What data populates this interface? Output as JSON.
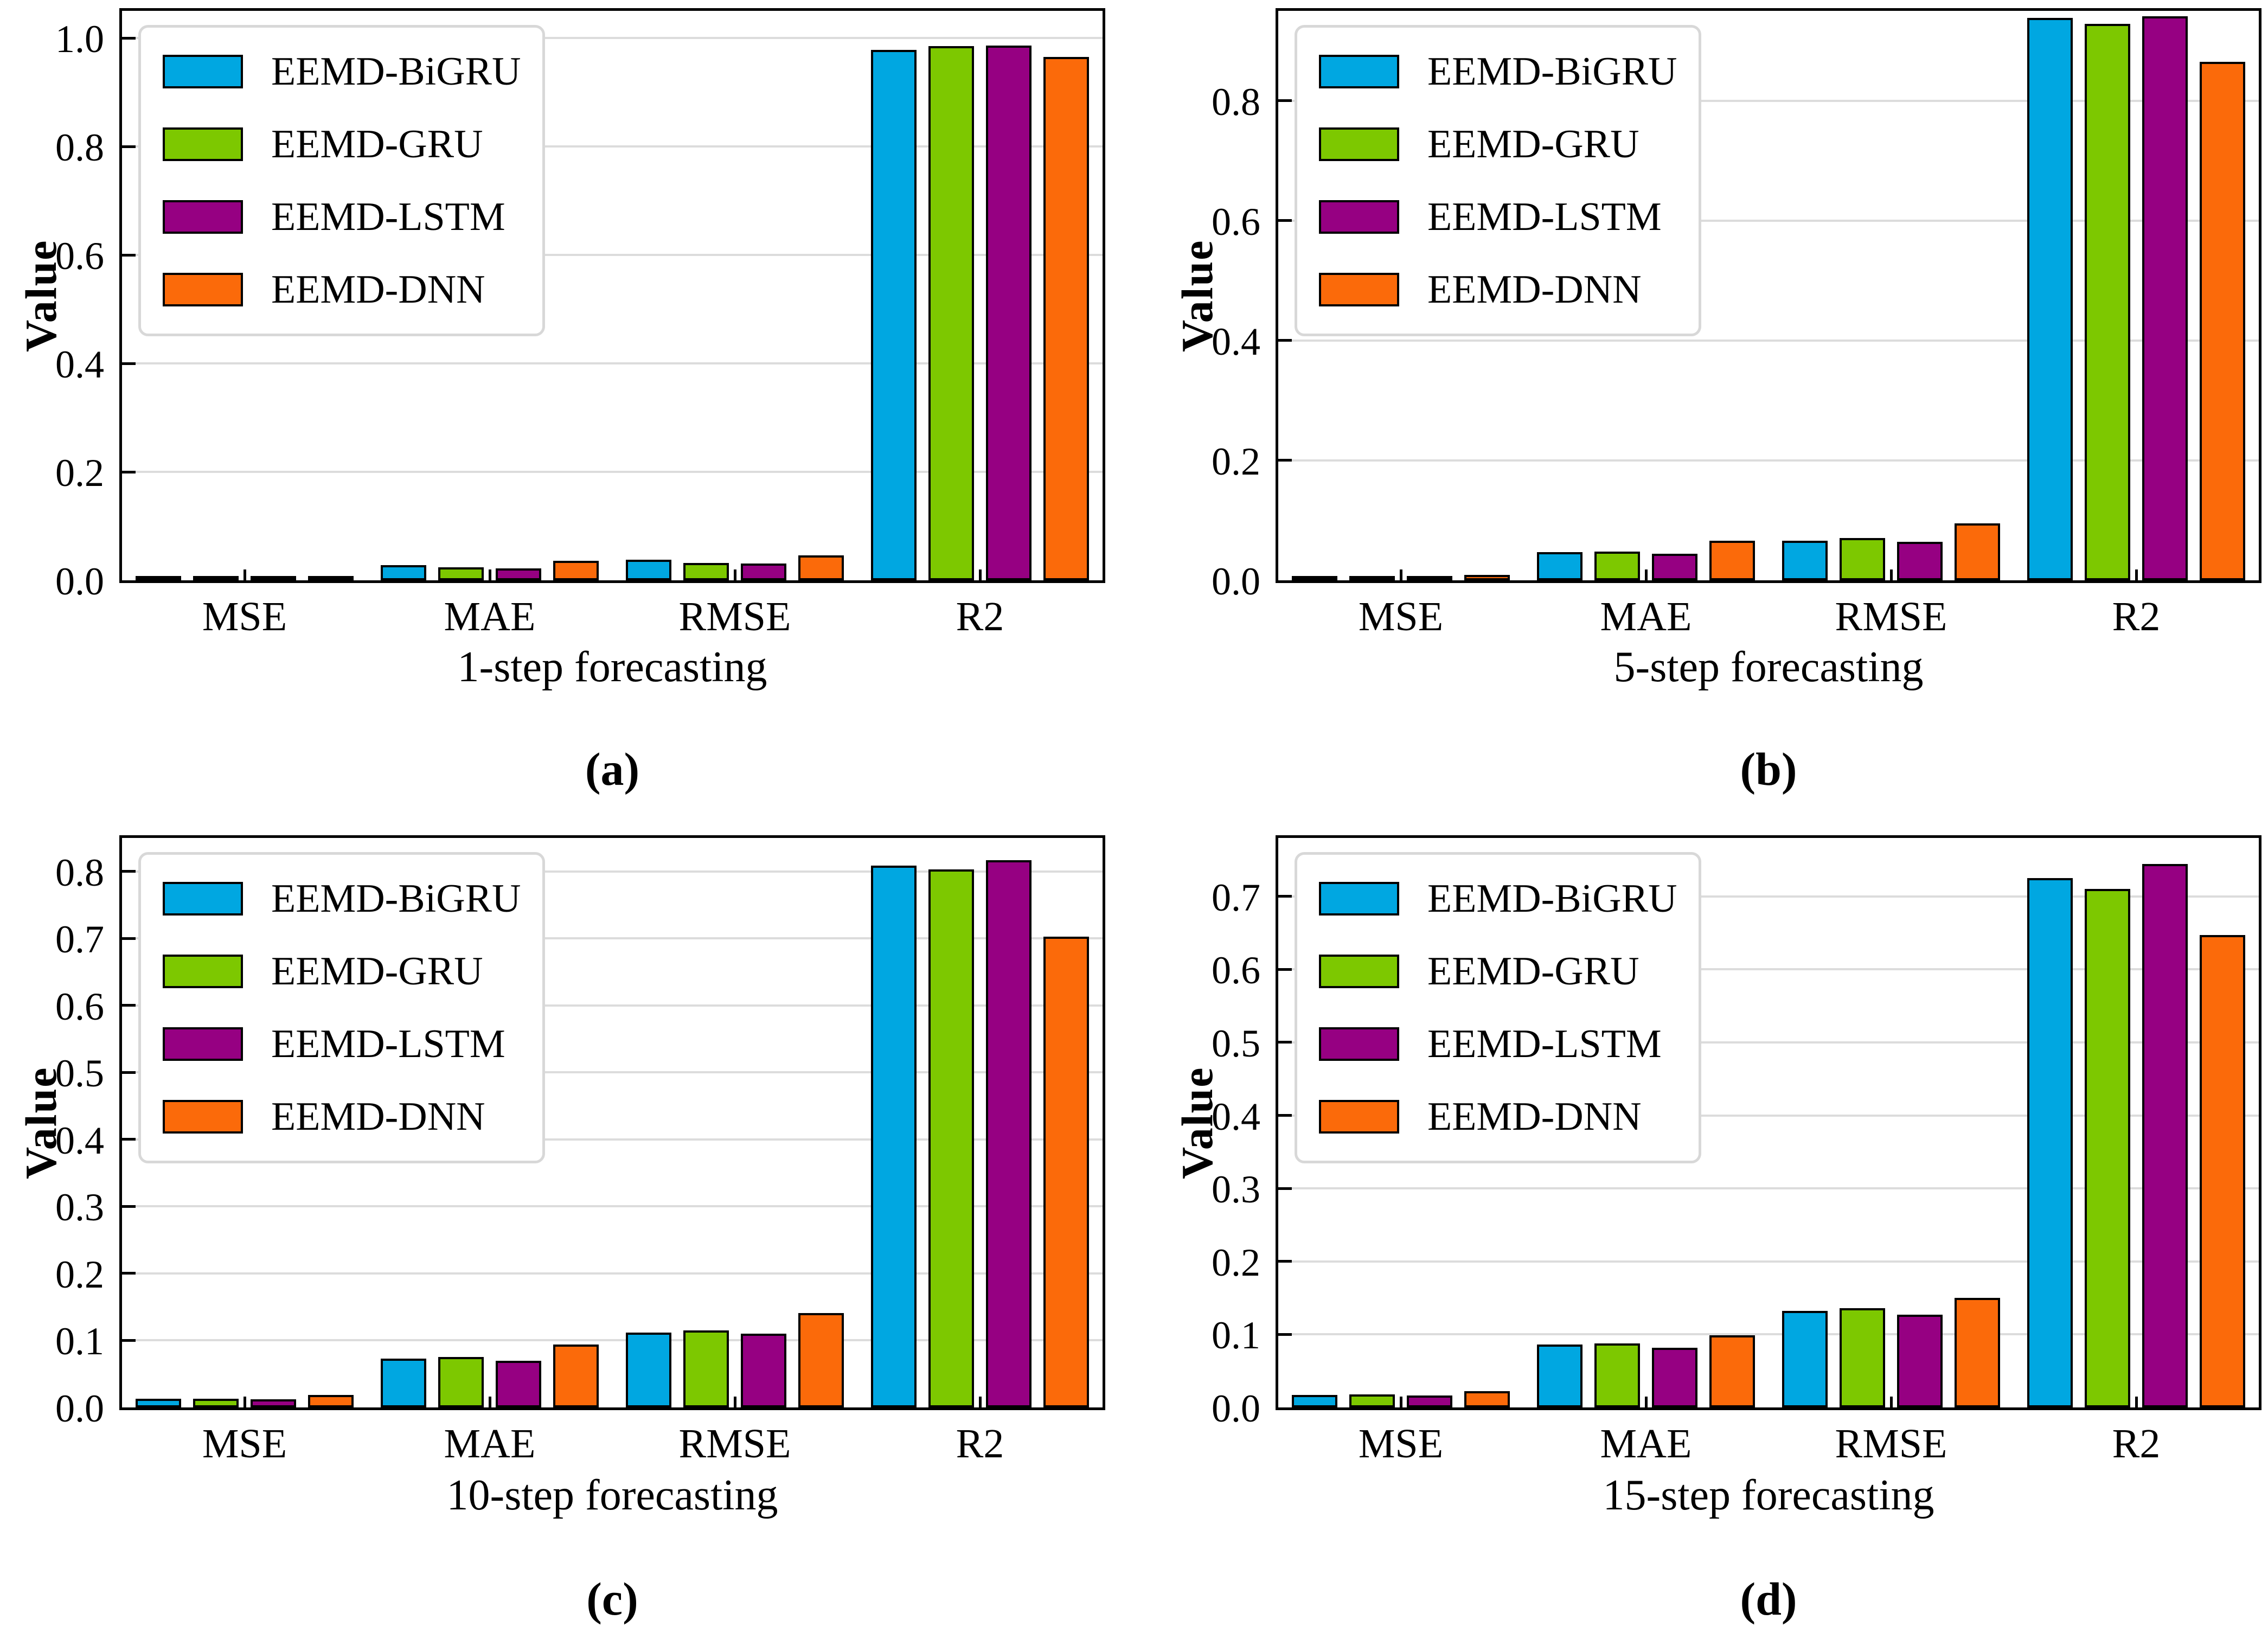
{
  "figure": {
    "background": "#ffffff",
    "gridline_color": "#dcdcdc",
    "bar_edge_color": "#000000",
    "panel_count": 4
  },
  "chart_data": [
    {
      "type": "bar",
      "panel_label": "(a)",
      "xlabel": "1-step forecasting",
      "ylabel": "Value",
      "categories": [
        "MSE",
        "MAE",
        "RMSE",
        "R2"
      ],
      "series": [
        {
          "name": "EEMD-BiGRU",
          "color": "#00a7e1",
          "values": [
            0.0015,
            0.028,
            0.038,
            0.978
          ]
        },
        {
          "name": "EEMD-GRU",
          "color": "#7dc800",
          "values": [
            0.001,
            0.024,
            0.032,
            0.985
          ]
        },
        {
          "name": "EEMD-LSTM",
          "color": "#960082",
          "values": [
            0.001,
            0.022,
            0.031,
            0.986
          ]
        },
        {
          "name": "EEMD-DNN",
          "color": "#fb6a0a",
          "values": [
            0.002,
            0.036,
            0.046,
            0.965
          ]
        }
      ],
      "ylim": [
        0,
        1.05
      ],
      "yticks": [
        "0.0",
        "0.2",
        "0.4",
        "0.6",
        "0.8",
        "1.0"
      ],
      "grid": true,
      "legend_position": "upper left"
    },
    {
      "type": "bar",
      "panel_label": "(b)",
      "xlabel": "5-step forecasting",
      "ylabel": "Value",
      "categories": [
        "MSE",
        "MAE",
        "RMSE",
        "R2"
      ],
      "series": [
        {
          "name": "EEMD-BiGRU",
          "color": "#00a7e1",
          "values": [
            0.005,
            0.047,
            0.066,
            0.938
          ]
        },
        {
          "name": "EEMD-GRU",
          "color": "#7dc800",
          "values": [
            0.005,
            0.048,
            0.071,
            0.928
          ]
        },
        {
          "name": "EEMD-LSTM",
          "color": "#960082",
          "values": [
            0.004,
            0.044,
            0.064,
            0.941
          ]
        },
        {
          "name": "EEMD-DNN",
          "color": "#fb6a0a",
          "values": [
            0.009,
            0.066,
            0.095,
            0.865
          ]
        }
      ],
      "ylim": [
        0,
        0.95
      ],
      "yticks": [
        "0.0",
        "0.2",
        "0.4",
        "0.6",
        "0.8"
      ],
      "grid": true,
      "legend_position": "upper left"
    },
    {
      "type": "bar",
      "panel_label": "(c)",
      "xlabel": "10-step forecasting",
      "ylabel": "Value",
      "categories": [
        "MSE",
        "MAE",
        "RMSE",
        "R2"
      ],
      "series": [
        {
          "name": "EEMD-BiGRU",
          "color": "#00a7e1",
          "values": [
            0.013,
            0.073,
            0.112,
            0.809
          ]
        },
        {
          "name": "EEMD-GRU",
          "color": "#7dc800",
          "values": [
            0.013,
            0.075,
            0.115,
            0.803
          ]
        },
        {
          "name": "EEMD-LSTM",
          "color": "#960082",
          "values": [
            0.012,
            0.07,
            0.11,
            0.817
          ]
        },
        {
          "name": "EEMD-DNN",
          "color": "#fb6a0a",
          "values": [
            0.019,
            0.094,
            0.141,
            0.703
          ]
        }
      ],
      "ylim": [
        0,
        0.85
      ],
      "yticks": [
        "0.0",
        "0.1",
        "0.2",
        "0.3",
        "0.4",
        "0.5",
        "0.6",
        "0.7",
        "0.8"
      ],
      "grid": true,
      "legend_position": "upper left"
    },
    {
      "type": "bar",
      "panel_label": "(d)",
      "xlabel": "15-step forecasting",
      "ylabel": "Value",
      "categories": [
        "MSE",
        "MAE",
        "RMSE",
        "R2"
      ],
      "series": [
        {
          "name": "EEMD-BiGRU",
          "color": "#00a7e1",
          "values": [
            0.017,
            0.086,
            0.132,
            0.725
          ]
        },
        {
          "name": "EEMD-GRU",
          "color": "#7dc800",
          "values": [
            0.018,
            0.088,
            0.136,
            0.71
          ]
        },
        {
          "name": "EEMD-LSTM",
          "color": "#960082",
          "values": [
            0.016,
            0.082,
            0.127,
            0.744
          ]
        },
        {
          "name": "EEMD-DNN",
          "color": "#fb6a0a",
          "values": [
            0.022,
            0.099,
            0.15,
            0.647
          ]
        }
      ],
      "ylim": [
        0,
        0.78
      ],
      "yticks": [
        "0.0",
        "0.1",
        "0.2",
        "0.3",
        "0.4",
        "0.5",
        "0.6",
        "0.7"
      ],
      "grid": true,
      "legend_position": "upper left"
    }
  ]
}
